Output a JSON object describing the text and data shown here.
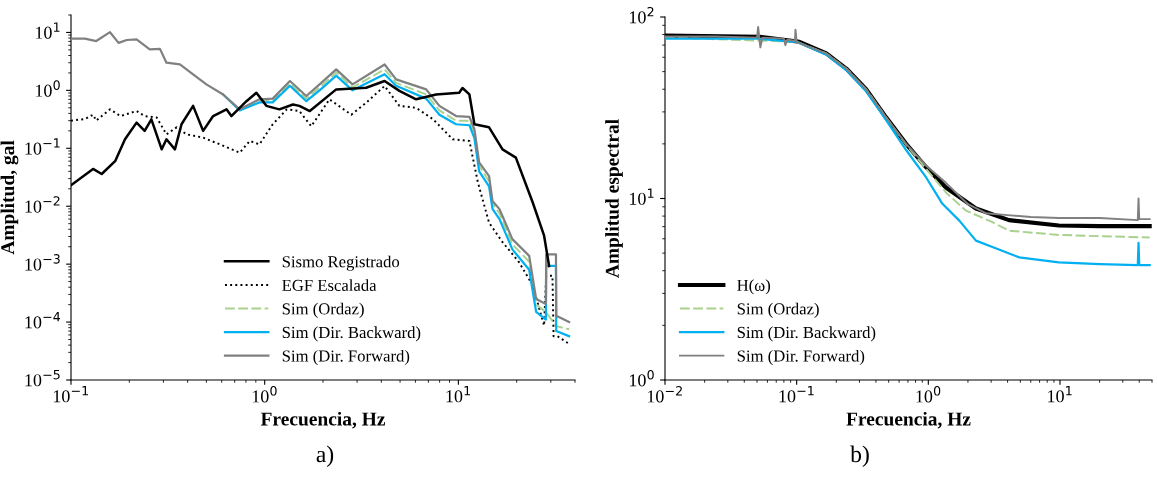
{
  "chart_data": [
    {
      "type": "line",
      "xlabel": "Frecuencia, Hz",
      "ylabel": "Amplitud, gal",
      "log": "xy",
      "grid": false,
      "legend": "bottom",
      "marker": "none",
      "xlim": [
        0.1,
        40
      ],
      "xticks": [
        {
          "value": 0.1,
          "label": "10$^{−1}$"
        },
        {
          "value": 1,
          "label": "10$^{0}$"
        },
        {
          "value": 10,
          "label": "10$^{1}$"
        }
      ],
      "ylim": [
        1e-05,
        20
      ],
      "yticks": [
        {
          "value": 1e-05,
          "label": "10$^{−5}$"
        },
        {
          "value": 0.0001,
          "label": "10$^{−4}$"
        },
        {
          "value": 0.001,
          "label": "10$^{−3}$"
        },
        {
          "value": 0.01,
          "label": "10$^{−2}$"
        },
        {
          "value": 0.1,
          "label": "10$^{−1}$"
        },
        {
          "value": 1,
          "label": "10$^{0}$"
        },
        {
          "value": 10,
          "label": "10$^{1}$"
        }
      ],
      "annotations": [
        "a)"
      ],
      "series": [
        {
          "name": "Sismo Registrado",
          "color": "#000000",
          "line_style": "solid",
          "x": [
            0.1,
            0.13,
            0.144,
            0.169,
            0.19,
            0.218,
            0.24,
            0.26,
            0.294,
            0.311,
            0.344,
            0.372,
            0.427,
            0.481,
            0.542,
            0.635,
            0.673,
            0.805,
            0.906,
            1.02,
            1.19,
            1.4,
            1.51,
            1.71,
            2.34,
            3.34,
            4.16,
            4.96,
            6.05,
            7.67,
            10.1,
            10.5,
            11.4,
            12.1,
            14.4,
            16.9,
            19.8,
            24.2,
            27.7,
            29.4
          ],
          "values": [
            0.023,
            0.044,
            0.036,
            0.06,
            0.143,
            0.277,
            0.2,
            0.316,
            0.096,
            0.143,
            0.096,
            0.26,
            0.54,
            0.2,
            0.36,
            0.47,
            0.36,
            0.65,
            0.91,
            0.54,
            0.47,
            0.57,
            0.54,
            0.44,
            1.04,
            1.11,
            1.45,
            0.98,
            0.7,
            0.85,
            0.91,
            1.1,
            0.85,
            0.26,
            0.23,
            0.096,
            0.069,
            0.0116,
            0.0031,
            0.00093
          ]
        },
        {
          "name": "EGF Escalada",
          "color": "#000000",
          "line_style": "dotted",
          "x": [
            0.1,
            0.118,
            0.13,
            0.135,
            0.159,
            0.18,
            0.218,
            0.24,
            0.277,
            0.311,
            0.351,
            0.395,
            0.481,
            0.586,
            0.743,
            0.837,
            0.94,
            1.1,
            1.3,
            1.51,
            1.74,
            2.16,
            2.8,
            3.34,
            4.16,
            4.96,
            6.05,
            7.38,
            9.35,
            11.4,
            12.6,
            14.4,
            16.9,
            20.6,
            24.2,
            27.7,
            28.4,
            30.6,
            31.0,
            32.5,
            37.3
          ],
          "values": [
            0.3,
            0.32,
            0.38,
            0.3,
            0.47,
            0.36,
            0.44,
            0.36,
            0.34,
            0.174,
            0.23,
            0.174,
            0.153,
            0.117,
            0.084,
            0.134,
            0.117,
            0.26,
            0.47,
            0.44,
            0.24,
            0.7,
            0.38,
            0.61,
            1.19,
            0.54,
            0.5,
            0.32,
            0.143,
            0.134,
            0.026,
            0.0052,
            0.0024,
            0.00107,
            0.00043,
            8.7e-05,
            0.00063,
            0.00063,
            5.7e-05,
            5.7e-05,
            4.2e-05
          ]
        },
        {
          "name": "Sim (Ordaz)",
          "color": "#a9d18e",
          "line_style": "dashed",
          "x": [
            0.94,
            1.1,
            1.35,
            1.64,
            1.92,
            2.34,
            2.84,
            4.16,
            4.77,
            6.82,
            7.98,
            9.73,
            11.4,
            12.1,
            12.8,
            14.4,
            15.0,
            16.3,
            19.0,
            23.2,
            25.2,
            28.3,
            32.0,
            37.3
          ],
          "values": [
            0.66,
            0.67,
            1.3,
            0.72,
            1.12,
            2.05,
            1.12,
            2.3,
            1.35,
            0.85,
            0.45,
            0.3,
            0.3,
            0.18,
            0.05,
            0.027,
            0.011,
            0.0075,
            0.0022,
            0.0011,
            0.0002,
            0.00015,
            8.5e-05,
            7.5e-05
          ]
        },
        {
          "name": "Sim (Dir. Backward)",
          "color": "#00b0f0",
          "line_style": "solid",
          "x": [
            0.61,
            0.743,
            0.94,
            1.1,
            1.35,
            1.64,
            1.92,
            2.34,
            2.84,
            4.16,
            4.77,
            6.82,
            7.98,
            9.73,
            11.4,
            12.1,
            12.8,
            14.4,
            15.0,
            16.3,
            19.0,
            23.2,
            25.2,
            28.3,
            28.4,
            31.9,
            32.0,
            37.3
          ],
          "values": [
            0.85,
            0.45,
            0.62,
            0.62,
            1.2,
            0.65,
            1.0,
            1.8,
            1.0,
            1.9,
            1.2,
            0.72,
            0.38,
            0.26,
            0.25,
            0.15,
            0.04,
            0.022,
            0.009,
            0.006,
            0.0018,
            0.0008,
            0.00015,
            0.00011,
            0.00093,
            0.00093,
            7e-05,
            5.7e-05
          ]
        },
        {
          "name": "Sim (Dir. Forward)",
          "color": "#808080",
          "line_style": "solid",
          "x": [
            0.1,
            0.118,
            0.135,
            0.159,
            0.176,
            0.194,
            0.218,
            0.255,
            0.288,
            0.311,
            0.365,
            0.427,
            0.5,
            0.61,
            0.743,
            0.94,
            1.1,
            1.35,
            1.64,
            1.92,
            2.34,
            2.84,
            4.16,
            4.77,
            6.82,
            7.98,
            9.73,
            11.4,
            12.1,
            12.8,
            14.4,
            15.0,
            16.3,
            19.0,
            23.2,
            25.2,
            28.3,
            28.4,
            31.9,
            32.0,
            37.3
          ],
          "values": [
            7.8,
            7.8,
            7.1,
            10.1,
            6.6,
            7.4,
            7.6,
            5.1,
            5.2,
            3.0,
            2.8,
            1.89,
            1.27,
            0.85,
            0.47,
            0.7,
            0.72,
            1.45,
            0.8,
            1.27,
            2.3,
            1.27,
            2.8,
            1.55,
            1.04,
            0.54,
            0.36,
            0.35,
            0.213,
            0.057,
            0.033,
            0.0123,
            0.0089,
            0.0027,
            0.00139,
            0.00025,
            0.000205,
            0.00148,
            0.00148,
            0.000129,
            0.0001
          ]
        }
      ]
    },
    {
      "type": "line",
      "xlabel": "Frecuencia, Hz",
      "ylabel": "Amplitud espectral",
      "log": "xy",
      "grid": false,
      "legend": "bottom left",
      "marker": "none",
      "xlim": [
        0.01,
        50
      ],
      "xticks": [
        {
          "value": 0.01,
          "label": "10$^{−2}$"
        },
        {
          "value": 0.1,
          "label": "10$^{−1}$"
        },
        {
          "value": 1,
          "label": "10$^{0}$"
        },
        {
          "value": 10,
          "label": "10$^{1}$"
        }
      ],
      "ylim": [
        1,
        100
      ],
      "yticks": [
        {
          "value": 1,
          "label": "10$^{0}$"
        },
        {
          "value": 10,
          "label": "10$^{1}$"
        },
        {
          "value": 100,
          "label": "10$^{2}$"
        }
      ],
      "annotations": [
        "b)"
      ],
      "series": [
        {
          "name": "H(ω)",
          "color": "#000000",
          "line_style": "solid",
          "x": [
            0.01,
            0.0525,
            0.105,
            0.168,
            0.238,
            0.337,
            0.478,
            0.678,
            0.96,
            1.36,
            2.3,
            4.1,
            9.8,
            20,
            48
          ],
          "values": [
            79,
            77.8,
            73,
            63,
            52,
            40,
            28,
            20,
            14.9,
            11.5,
            8.8,
            7.6,
            7.1,
            7.05,
            7.05
          ]
        },
        {
          "name": "Sim (Ordaz)",
          "color": "#a9d18e",
          "line_style": "dashed",
          "x": [
            0.01,
            0.1,
            0.168,
            0.238,
            0.337,
            0.478,
            0.678,
            0.96,
            1.36,
            1.92,
            3.07,
            4.1,
            9.8,
            20,
            48
          ],
          "values": [
            77,
            73,
            63,
            52,
            40,
            28,
            19.8,
            14.6,
            10.8,
            8.6,
            7.4,
            6.65,
            6.3,
            6.2,
            6.1
          ]
        },
        {
          "name": "Sim (Dir. Backward)",
          "color": "#00b0f0",
          "line_style": "solid",
          "x": [
            0.01,
            0.05,
            0.1,
            0.168,
            0.238,
            0.337,
            0.478,
            0.678,
            0.96,
            1.28,
            1.72,
            2.3,
            3.07,
            4.9,
            9.8,
            20,
            39,
            39.5,
            40,
            48
          ],
          "values": [
            76,
            76,
            73,
            62,
            51,
            39,
            27,
            18.5,
            13.1,
            9.35,
            7.55,
            5.86,
            5.4,
            4.74,
            4.45,
            4.35,
            4.3,
            5.7,
            4.3,
            4.3
          ]
        },
        {
          "name": "Sim (Dir. Forward)",
          "color": "#808080",
          "line_style": "solid",
          "x": [
            0.01,
            0.024,
            0.05,
            0.051,
            0.053,
            0.055,
            0.08,
            0.082,
            0.085,
            0.097,
            0.098,
            0.1,
            0.168,
            0.238,
            0.337,
            0.478,
            0.678,
            0.96,
            1.36,
            2.0,
            2.73,
            4,
            6,
            9.8,
            20,
            39,
            39.5,
            40,
            48
          ],
          "values": [
            78,
            78,
            77,
            88,
            68,
            77,
            76,
            70,
            75,
            74,
            85,
            73,
            63,
            52,
            40,
            28,
            20,
            15.2,
            12.2,
            9.3,
            8.3,
            8.1,
            7.9,
            7.8,
            7.8,
            7.6,
            10,
            7.7,
            7.7
          ]
        }
      ]
    }
  ]
}
